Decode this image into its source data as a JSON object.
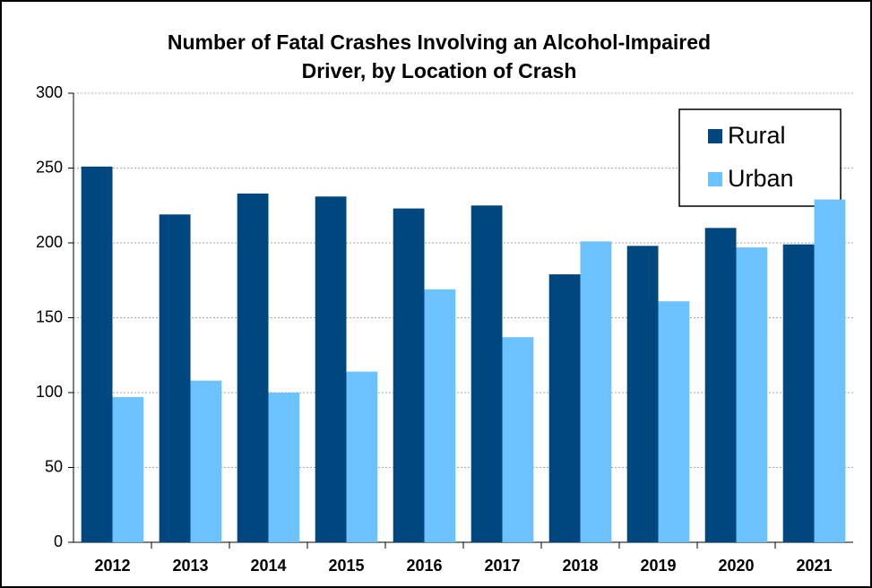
{
  "chart_data": {
    "type": "bar",
    "title": [
      "Number of Fatal Crashes Involving an Alcohol-Impaired",
      "Driver, by Location of Crash"
    ],
    "categories": [
      "2012",
      "2013",
      "2014",
      "2015",
      "2016",
      "2017",
      "2018",
      "2019",
      "2020",
      "2021"
    ],
    "series": [
      {
        "name": "Rural",
        "color": "#00467f",
        "values": [
          251,
          219,
          233,
          231,
          223,
          225,
          179,
          198,
          210,
          199
        ]
      },
      {
        "name": "Urban",
        "color": "#6cc2ff",
        "values": [
          97,
          108,
          100,
          114,
          169,
          137,
          201,
          161,
          197,
          229
        ]
      }
    ],
    "ylim": [
      0,
      300
    ],
    "yticks": [
      0,
      50,
      100,
      150,
      200,
      250,
      300
    ],
    "grid": true,
    "legend": "top-right"
  }
}
